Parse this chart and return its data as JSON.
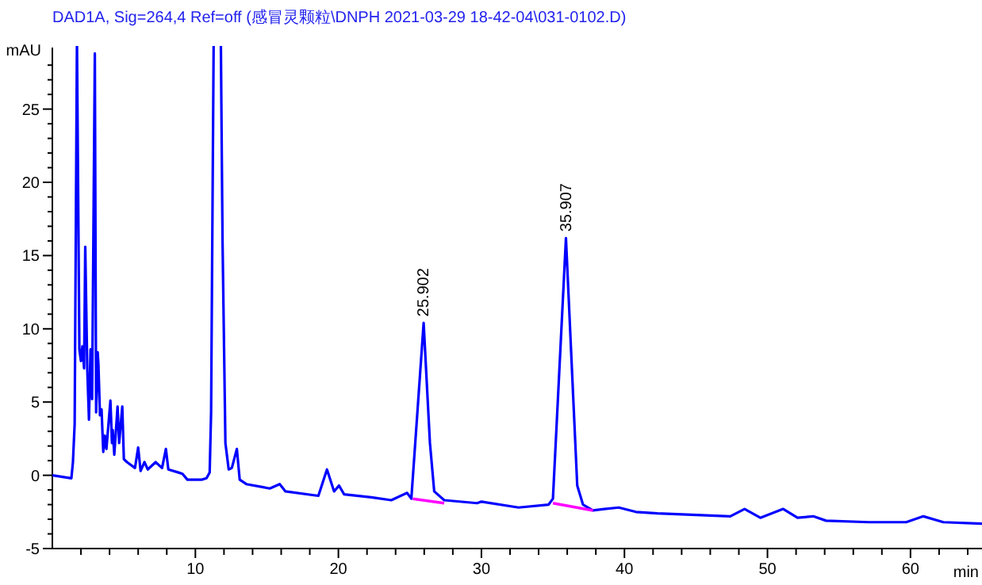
{
  "chart_data": {
    "type": "line",
    "title": "DAD1A, Sig=264,4 Ref=off (感冒灵颗粒\\DNPH 2021-03-29 18-42-04\\031-0102.D)",
    "xlabel": "min",
    "ylabel": "mAU",
    "xlim": [
      0,
      65
    ],
    "ylim": [
      -5,
      29.2
    ],
    "xticks": [
      {
        "value": 2,
        "label": null
      },
      {
        "value": 4,
        "label": null
      },
      {
        "value": 6,
        "label": null
      },
      {
        "value": 8,
        "label": null
      },
      10,
      {
        "value": 12,
        "label": null
      },
      {
        "value": 14,
        "label": null
      },
      {
        "value": 16,
        "label": null
      },
      {
        "value": 18,
        "label": null
      },
      20,
      {
        "value": 22,
        "label": null
      },
      {
        "value": 24,
        "label": null
      },
      {
        "value": 26,
        "label": null
      },
      {
        "value": 28,
        "label": null
      },
      30,
      {
        "value": 32,
        "label": null
      },
      {
        "value": 34,
        "label": null
      },
      {
        "value": 36,
        "label": null
      },
      {
        "value": 38,
        "label": null
      },
      40,
      {
        "value": 42,
        "label": null
      },
      {
        "value": 44,
        "label": null
      },
      {
        "value": 46,
        "label": null
      },
      {
        "value": 48,
        "label": null
      },
      50,
      {
        "value": 52,
        "label": null
      },
      {
        "value": 54,
        "label": null
      },
      {
        "value": 56,
        "label": null
      },
      {
        "value": 58,
        "label": null
      },
      60,
      {
        "value": 62,
        "label": null
      },
      {
        "value": 64,
        "label": null
      }
    ],
    "yticks": [
      -5,
      {
        "value": -4,
        "label": null
      },
      {
        "value": -3,
        "label": null
      },
      {
        "value": -2,
        "label": null
      },
      {
        "value": -1,
        "label": null
      },
      0,
      {
        "value": 1,
        "label": null
      },
      {
        "value": 2,
        "label": null
      },
      {
        "value": 3,
        "label": null
      },
      {
        "value": 4,
        "label": null
      },
      5,
      {
        "value": 6,
        "label": null
      },
      {
        "value": 7,
        "label": null
      },
      {
        "value": 8,
        "label": null
      },
      {
        "value": 9,
        "label": null
      },
      10,
      {
        "value": 11,
        "label": null
      },
      {
        "value": 12,
        "label": null
      },
      {
        "value": 13,
        "label": null
      },
      {
        "value": 14,
        "label": null
      },
      15,
      {
        "value": 16,
        "label": null
      },
      {
        "value": 17,
        "label": null
      },
      {
        "value": 18,
        "label": null
      },
      {
        "value": 19,
        "label": null
      },
      20,
      {
        "value": 21,
        "label": null
      },
      {
        "value": 22,
        "label": null
      },
      {
        "value": 23,
        "label": null
      },
      {
        "value": 24,
        "label": null
      },
      25,
      {
        "value": 26,
        "label": null
      },
      {
        "value": 27,
        "label": null
      },
      {
        "value": 28,
        "label": null
      }
    ],
    "series": [
      {
        "color": "#0000ff",
        "x": [
          0,
          1.33,
          1.44,
          1.56,
          1.72,
          1.89,
          2.0,
          2.1,
          2.22,
          2.3,
          2.44,
          2.56,
          2.67,
          2.78,
          2.97,
          3.06,
          3.17,
          3.22,
          3.33,
          3.44,
          3.56,
          3.67,
          3.78,
          4.06,
          4.17,
          4.22,
          4.33,
          4.56,
          4.67,
          4.89,
          5.0,
          5.22,
          5.78,
          6.0,
          6.17,
          6.44,
          6.67,
          7.22,
          7.67,
          7.94,
          8.11,
          8.78,
          9.1,
          9.44,
          10.44,
          10.78,
          11.0,
          11.1,
          11.28,
          11.78,
          11.9,
          12.1,
          12.33,
          12.55,
          12.9,
          13.1,
          13.56,
          14.67,
          15.2,
          15.9,
          16.3,
          18.6,
          19.2,
          19.7,
          20.04,
          20.4,
          22.3,
          23.7,
          24.8,
          25.1,
          25.96,
          26.4,
          26.7,
          27.4,
          29.7,
          30.0,
          32.6,
          34.7,
          35.0,
          35.91,
          36.7,
          37.1,
          37.8,
          38.6,
          39.6,
          40.8,
          42.3,
          47.4,
          48.4,
          49.5,
          51.1,
          52.1,
          53.2,
          54.1,
          57.1,
          59.7,
          60.9,
          62.3,
          65.0
        ],
        "values": [
          0,
          -0.2,
          0.9,
          3.5,
          null,
          8.6,
          7.8,
          8.8,
          7.3,
          15.6,
          7.3,
          3.8,
          8.6,
          5.2,
          28.8,
          4.3,
          8.4,
          7.6,
          4.1,
          4.5,
          1.6,
          2.7,
          1.8,
          5.1,
          2.2,
          3.1,
          1.4,
          4.7,
          2.2,
          4.7,
          1.1,
          0.9,
          0.5,
          1.9,
          0.3,
          0.9,
          0.4,
          0.9,
          0.5,
          1.8,
          0.4,
          0.2,
          0.1,
          -0.3,
          -0.3,
          -0.2,
          0.2,
          4.3,
          null,
          null,
          16,
          2.2,
          0.4,
          0.5,
          1.8,
          -0.3,
          -0.6,
          -0.8,
          -0.9,
          -0.6,
          -1.1,
          -1.4,
          0.4,
          -1.1,
          -0.7,
          -1.3,
          -1.5,
          -1.7,
          -1.2,
          -1.6,
          10.4,
          2.2,
          -1.1,
          -1.7,
          -1.9,
          -1.8,
          -2.2,
          -2.0,
          -1.6,
          16.2,
          -0.7,
          -2.0,
          -2.4,
          -2.3,
          -2.2,
          -2.5,
          -2.6,
          -2.8,
          -2.3,
          -2.9,
          -2.3,
          -2.9,
          -2.8,
          -3.1,
          -3.2,
          -3.2,
          -2.8,
          -3.2,
          -3.3
        ]
      },
      {
        "color": "#ff00ff",
        "x": [
          25.2,
          27.4
        ],
        "values": [
          -1.6,
          -1.9
        ]
      },
      {
        "color": "#ff00ff",
        "x": [
          35.0,
          37.8
        ],
        "values": [
          -1.9,
          -2.4
        ]
      }
    ],
    "annotations": [
      {
        "text": "25.902",
        "x": 25.902,
        "y": 10.4
      },
      {
        "text": "35.907",
        "x": 35.907,
        "y": 16.2
      }
    ]
  }
}
